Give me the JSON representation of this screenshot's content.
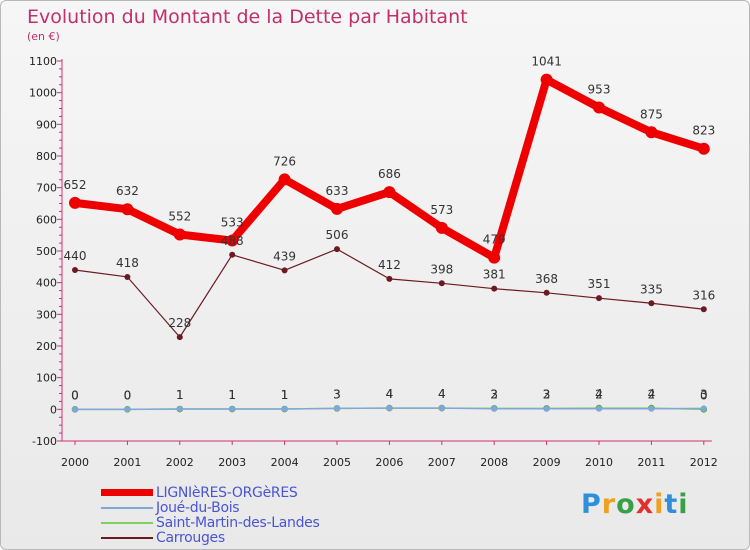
{
  "title": "Evolution du Montant de la Dette par Habitant",
  "subtitle": "(en €)",
  "logo": {
    "letters": [
      "P",
      "r",
      "o",
      "x",
      "i",
      "t",
      "i"
    ],
    "colors": [
      "#2f8fd8",
      "#f0a020",
      "#3aa048",
      "#e03030",
      "#f0a020",
      "#2f8fd8",
      "#3aa048"
    ]
  },
  "chart_data": {
    "type": "line",
    "title": "Evolution du Montant de la Dette par Habitant",
    "ylabel": "(en €)",
    "xlabel": "",
    "ylim": [
      -100,
      1100
    ],
    "yticks": [
      -100,
      0,
      100,
      200,
      300,
      400,
      500,
      600,
      700,
      800,
      900,
      1000,
      1100
    ],
    "grid": false,
    "legend": "bottom-left",
    "categories": [
      "2000",
      "2001",
      "2002",
      "2003",
      "2004",
      "2005",
      "2006",
      "2007",
      "2008",
      "2009",
      "2010",
      "2011",
      "2012"
    ],
    "series": [
      {
        "name": "LIGNIèRES-ORGèRES",
        "color": "#ee0000",
        "values": [
          652,
          632,
          552,
          533,
          726,
          633,
          686,
          573,
          479,
          1041,
          953,
          875,
          823
        ]
      },
      {
        "name": "Joué-du-Bois",
        "color": "#7fa8d8",
        "values": [
          0,
          0,
          1,
          1,
          1,
          3,
          4,
          4,
          2,
          2,
          2,
          2,
          3
        ]
      },
      {
        "name": "Saint-Martin-des-Landes",
        "color": "#7ed060",
        "values": [
          0,
          0,
          1,
          1,
          1,
          3,
          4,
          4,
          3,
          3,
          4,
          4,
          0
        ]
      },
      {
        "name": "Carrouges",
        "color": "#6b1a22",
        "values": [
          440,
          418,
          228,
          488,
          439,
          506,
          412,
          398,
          381,
          368,
          351,
          335,
          316
        ]
      }
    ]
  }
}
